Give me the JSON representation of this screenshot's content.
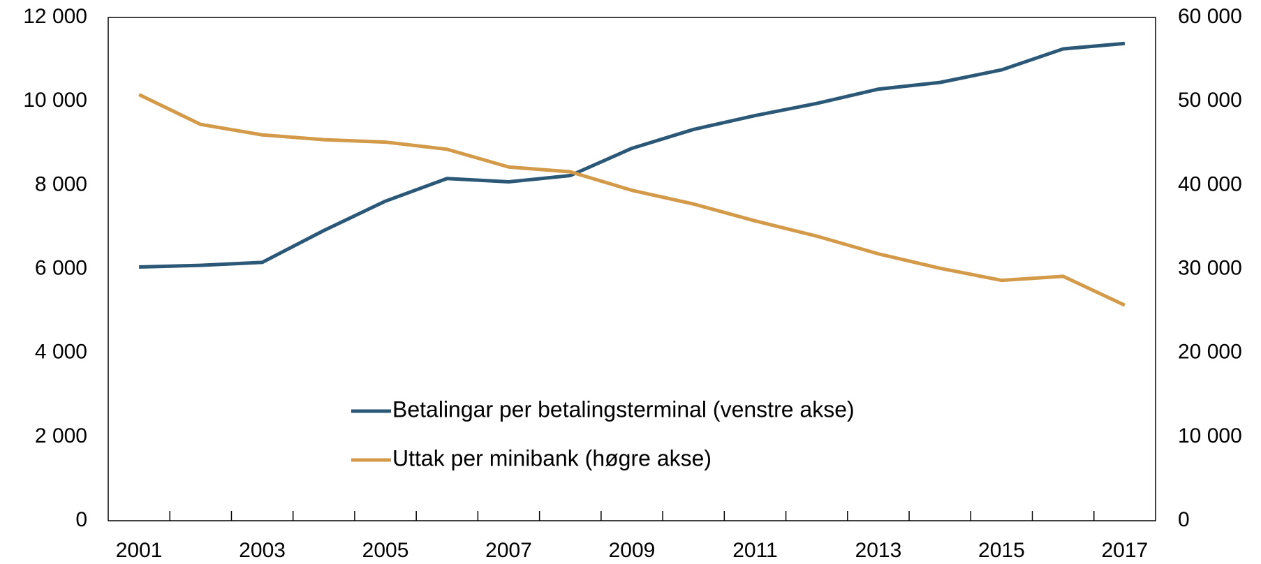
{
  "chart_data": {
    "type": "line",
    "categories": [
      "2001",
      null,
      "2003",
      null,
      "2005",
      null,
      "2007",
      null,
      "2009",
      null,
      "2011",
      null,
      "2013",
      null,
      "2015",
      null,
      "2017"
    ],
    "series": [
      {
        "name": "Betalingar per betalingsterminal (venstre akse)",
        "color": "#2b5876",
        "axis": "y",
        "values": [
          6050,
          6090,
          6160,
          6920,
          7620,
          8160,
          8080,
          8230,
          8880,
          9330,
          9660,
          9950,
          10290,
          10450,
          10750,
          11250,
          11380
        ]
      },
      {
        "name": "Uttak per minibank (høgre akse)",
        "color": "#d39a4a",
        "axis": "y2",
        "values": [
          50800,
          47250,
          46000,
          45430,
          45140,
          44280,
          42170,
          41600,
          39390,
          37760,
          35750,
          33930,
          31820,
          30100,
          28660,
          29140,
          25690
        ]
      }
    ],
    "ylim": [
      0,
      12000
    ],
    "yticks": [
      0,
      {
        "value": 2000,
        "label": "2 000"
      },
      {
        "value": 4000,
        "label": "4 000"
      },
      {
        "value": 6000,
        "label": "6 000"
      },
      {
        "value": 8000,
        "label": "8 000"
      },
      {
        "value": 10000,
        "label": "10 000"
      },
      {
        "value": 12000,
        "label": "12 000"
      }
    ],
    "y2lim": [
      0,
      60000
    ],
    "y2ticks": [
      0,
      {
        "value": 10000,
        "label": "10 000"
      },
      {
        "value": 20000,
        "label": "20 000"
      },
      {
        "value": 30000,
        "label": "30 000"
      },
      {
        "value": 40000,
        "label": "40 000"
      },
      {
        "value": 50000,
        "label": "50 000"
      },
      {
        "value": 60000,
        "label": "60 000"
      }
    ],
    "grid": false
  }
}
